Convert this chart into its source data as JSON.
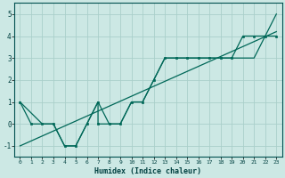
{
  "xlabel": "Humidex (Indice chaleur)",
  "xlim": [
    -0.5,
    23.5
  ],
  "ylim": [
    -1.5,
    5.5
  ],
  "yticks": [
    -1,
    0,
    1,
    2,
    3,
    4,
    5
  ],
  "xticks": [
    0,
    1,
    2,
    3,
    4,
    5,
    6,
    7,
    8,
    9,
    10,
    11,
    12,
    13,
    14,
    15,
    16,
    17,
    18,
    19,
    20,
    21,
    22,
    23
  ],
  "bg_color": "#cce8e4",
  "grid_color": "#aacfca",
  "line_color": "#006858",
  "line1_x": [
    0,
    1,
    2,
    3,
    4,
    5,
    6,
    7,
    7,
    8,
    9,
    10,
    11,
    12,
    13,
    14,
    15,
    16,
    17,
    18,
    19,
    20,
    21,
    22,
    23
  ],
  "line1_y": [
    1,
    0,
    0,
    0,
    -1,
    -1,
    0,
    1,
    0,
    0,
    0,
    1,
    1,
    2,
    3,
    3,
    3,
    3,
    3,
    3,
    3,
    4,
    4,
    4,
    4
  ],
  "line2_x": [
    0,
    2,
    3,
    4,
    5,
    5,
    6,
    7,
    8,
    9,
    10,
    11,
    12,
    13,
    14,
    15,
    16,
    17,
    18,
    19,
    20,
    21,
    22,
    23
  ],
  "line2_y": [
    1,
    0,
    0,
    -1,
    -1,
    -1,
    0,
    1,
    0,
    0,
    1,
    1,
    2,
    3,
    3,
    3,
    3,
    3,
    3,
    3,
    3,
    3,
    4,
    5
  ],
  "line3_x": [
    0,
    23
  ],
  "line3_y": [
    -1,
    4.2
  ],
  "figsize": [
    3.2,
    2.0
  ],
  "dpi": 100
}
